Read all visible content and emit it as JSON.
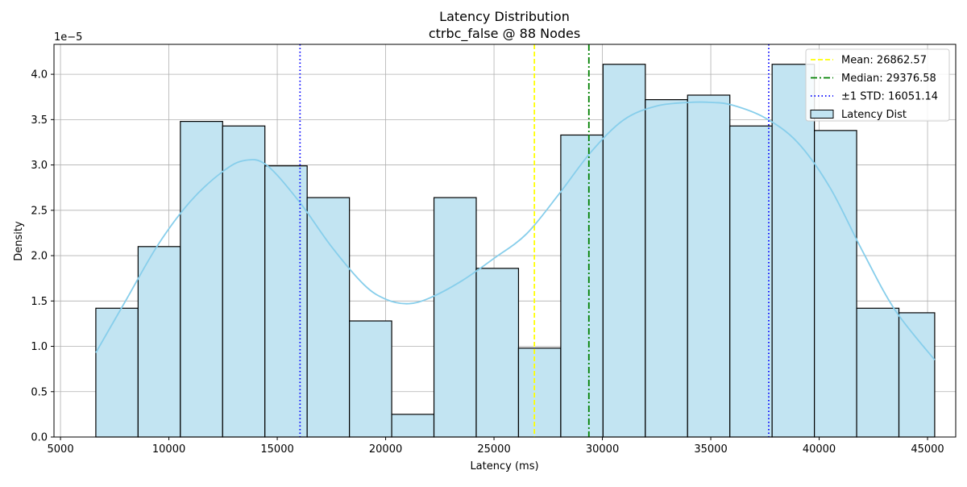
{
  "chart_data": {
    "type": "bar",
    "title": "Latency Distribution",
    "subtitle": "ctrbc_false @ 88 Nodes",
    "xlabel": "Latency (ms)",
    "ylabel": "Density",
    "y_scale_label": "1e−5",
    "xlim": [
      4700,
      46300
    ],
    "ylim": [
      0,
      4.33
    ],
    "y_multiplier": 1e-05,
    "grid": true,
    "legend_position": "top-right",
    "x_ticks": [
      5000,
      10000,
      15000,
      20000,
      25000,
      30000,
      35000,
      40000,
      45000
    ],
    "x_tick_labels": [
      "5000",
      "10000",
      "15000",
      "20000",
      "25000",
      "30000",
      "35000",
      "40000",
      "45000"
    ],
    "y_ticks": [
      0,
      0.5,
      1.0,
      1.5,
      2.0,
      2.5,
      3.0,
      3.5,
      4.0
    ],
    "y_tick_labels": [
      "0.0",
      "0.5",
      "1.0",
      "1.5",
      "2.0",
      "2.5",
      "3.0",
      "3.5",
      "4.0"
    ],
    "bins": {
      "edges": [
        6630,
        8580,
        10530,
        12480,
        14430,
        16380,
        18330,
        20280,
        22230,
        24180,
        26130,
        28080,
        30030,
        31980,
        33930,
        35880,
        37830,
        39780,
        41730,
        43680,
        45330
      ],
      "values": [
        1.42,
        2.1,
        3.48,
        3.43,
        2.99,
        2.64,
        1.28,
        0.25,
        2.64,
        1.86,
        0.98,
        3.33,
        4.11,
        3.72,
        3.77,
        3.43,
        4.11,
        3.38,
        1.42,
        1.37
      ],
      "fill": "#c2e4f2",
      "edge": "#000000"
    },
    "kde": {
      "color": "#87ceeb",
      "x": [
        6630,
        8000,
        9500,
        11000,
        12500,
        13500,
        14500,
        16000,
        17500,
        19000,
        20000,
        21000,
        22000,
        23500,
        25000,
        26500,
        28000,
        29500,
        31000,
        32500,
        34000,
        35000,
        36000,
        37500,
        39000,
        40500,
        42000,
        43500,
        45330
      ],
      "y": [
        0.93,
        1.5,
        2.12,
        2.6,
        2.93,
        3.05,
        3.0,
        2.6,
        2.1,
        1.68,
        1.52,
        1.47,
        1.53,
        1.72,
        1.97,
        2.24,
        2.68,
        3.15,
        3.5,
        3.65,
        3.69,
        3.69,
        3.66,
        3.52,
        3.25,
        2.75,
        2.05,
        1.4,
        0.85
      ]
    },
    "lines": [
      {
        "name": "Mean: 26862.57",
        "x": 26862.57,
        "color": "#ffff00",
        "dash": "6,3"
      },
      {
        "name": "Median: 29376.58",
        "x": 29376.58,
        "color": "#008000",
        "dash": "8,3,2,3"
      },
      {
        "name": "±1 STD: 16051.14",
        "x": 16051.14,
        "color": "#0000ff",
        "dash": "1.5,3"
      },
      {
        "name": "",
        "x": 37673.71,
        "color": "#0000ff",
        "dash": "1.5,3"
      }
    ],
    "legend": [
      {
        "label": "Mean: 26862.57",
        "kind": "line",
        "color": "#ffff00",
        "dash": "6,3"
      },
      {
        "label": "Median: 29376.58",
        "kind": "line",
        "color": "#008000",
        "dash": "8,3,2,3"
      },
      {
        "label": "±1 STD: 16051.14",
        "kind": "line",
        "color": "#0000ff",
        "dash": "1.5,3"
      },
      {
        "label": "Latency Dist",
        "kind": "patch",
        "color": "#c2e4f2"
      }
    ]
  }
}
